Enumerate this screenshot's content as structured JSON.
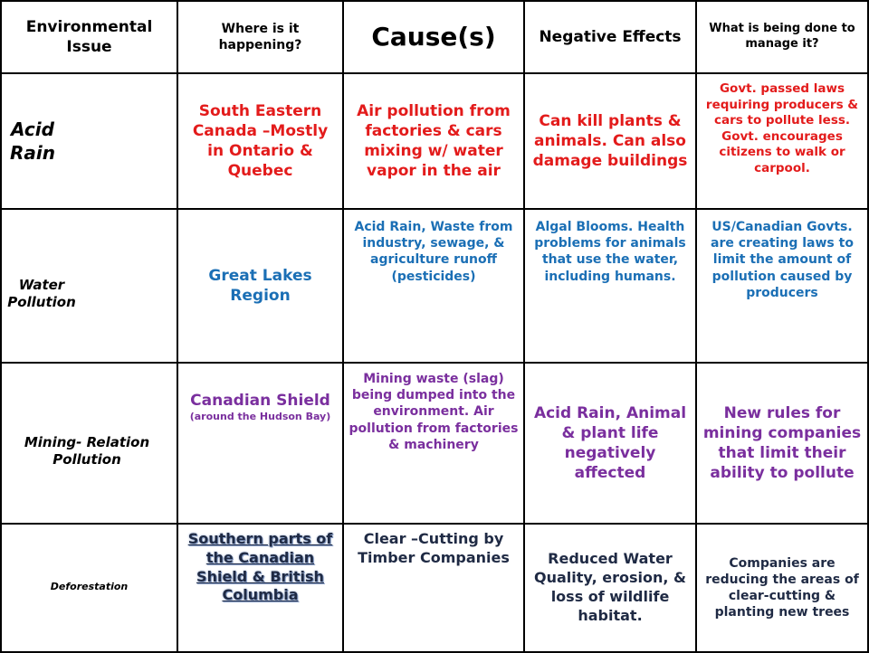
{
  "headers": {
    "issue": "Environmental Issue",
    "where": "Where is it happening?",
    "cause": "Cause(s)",
    "negative": "Negative Effects",
    "manage": "What is being done to manage it?"
  },
  "rows": [
    {
      "issue": "Acid Rain",
      "where": "South Eastern Canada –Mostly in Ontario & Quebec",
      "cause": "Air pollution from factories & cars mixing w/ water vapor in the air",
      "negative": "Can kill plants & animals. Can also damage buildings",
      "manage": "Govt. passed laws requiring producers & cars to pollute less. Govt. encourages citizens to walk or carpool.",
      "color": "#e31b1b"
    },
    {
      "issue": "Water Pollution",
      "where": "Great Lakes Region",
      "cause": "Acid Rain, Waste from industry, sewage, & agriculture runoff (pesticides)",
      "negative": "Algal Blooms. Health problems for animals that use the water, including humans.",
      "manage": "US/Canadian Govts.  are creating laws to limit the amount of pollution caused by producers",
      "color": "#1b6fb5"
    },
    {
      "issue": "Mining- Relation Pollution",
      "where": "Canadian Shield",
      "where_sub": "(around the Hudson Bay)",
      "cause": "Mining waste (slag) being dumped into the environment. Air pollution from factories & machinery",
      "negative": "Acid Rain, Animal & plant life negatively affected",
      "manage": "New rules for mining companies that limit their ability to pollute",
      "color": "#7a2f9e"
    },
    {
      "issue": "Deforestation",
      "where": "Southern parts of the Canadian Shield & British Columbia",
      "cause": "Clear –Cutting by Timber Companies",
      "negative": "Reduced Water Quality, erosion, & loss of wildlife habitat.",
      "manage": "Companies are reducing the areas of clear-cutting & planting new trees",
      "color": "#1f2a44"
    }
  ]
}
